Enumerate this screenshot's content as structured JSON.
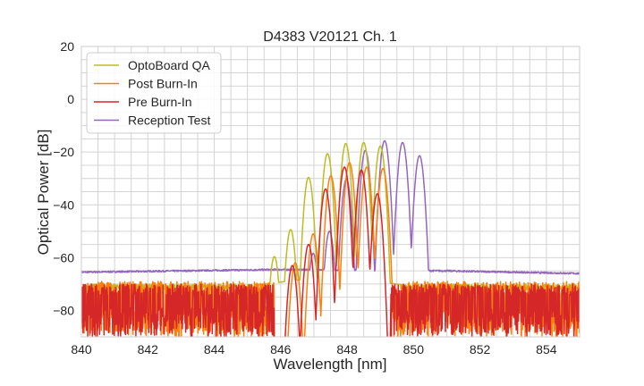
{
  "chart_data": {
    "type": "line",
    "title": "D4383 V20121 Ch. 1",
    "xlabel": "Wavelength [nm]",
    "ylabel": "Optical Power [dB]",
    "xlim": [
      840,
      855
    ],
    "ylim": [
      -90,
      20
    ],
    "xticks": [
      840,
      842,
      844,
      846,
      848,
      850,
      852,
      854
    ],
    "yticks": [
      20,
      0,
      -20,
      -40,
      -60,
      -80
    ],
    "grid": true,
    "minor_grid": {
      "x_step": 0.5,
      "y_step": 5
    },
    "legend_position": "top-left",
    "series": [
      {
        "name": "OptoBoard QA",
        "color": "#bcbd22",
        "peaks": [
          [
            845.81,
            -59.6
          ],
          [
            846.3,
            -49.4
          ],
          [
            846.84,
            -29.6
          ],
          [
            847.41,
            -20.6
          ],
          [
            847.96,
            -16.8
          ],
          [
            848.5,
            -16.4
          ],
          [
            849.0,
            -17.7
          ]
        ],
        "noise_floor_db": [
          -75,
          -70
        ],
        "floor_edge_db": -67
      },
      {
        "name": "Post Burn-In",
        "color": "#ff7f0e",
        "peaks": [
          [
            846.44,
            -62
          ],
          [
            846.98,
            -51
          ],
          [
            847.51,
            -29
          ],
          [
            848.07,
            -24
          ],
          [
            848.59,
            -25.7
          ],
          [
            849.08,
            -26.2
          ]
        ],
        "noise_floor_db": [
          -90,
          -69
        ]
      },
      {
        "name": "Pre Burn-In",
        "color": "#d62728",
        "peaks": [
          [
            846.35,
            -63
          ],
          [
            846.84,
            -55
          ],
          [
            847.35,
            -34
          ],
          [
            847.92,
            -25.7
          ],
          [
            848.43,
            -26.8
          ],
          [
            848.91,
            -35.8
          ]
        ],
        "noise_floor_db": [
          -90,
          -70
        ]
      },
      {
        "name": "Reception Test",
        "color": "#9467bd",
        "peaks": [
          [
            846.98,
            -58.4
          ],
          [
            847.47,
            -50
          ],
          [
            847.98,
            -30.2
          ],
          [
            848.55,
            -19.4
          ],
          [
            849.13,
            -15.7
          ],
          [
            849.67,
            -16.4
          ],
          [
            850.18,
            -21.4
          ]
        ],
        "baseline_db": {
          "840": -65.5,
          "846": -64.5,
          "851": -65,
          "855": -66
        }
      }
    ]
  }
}
